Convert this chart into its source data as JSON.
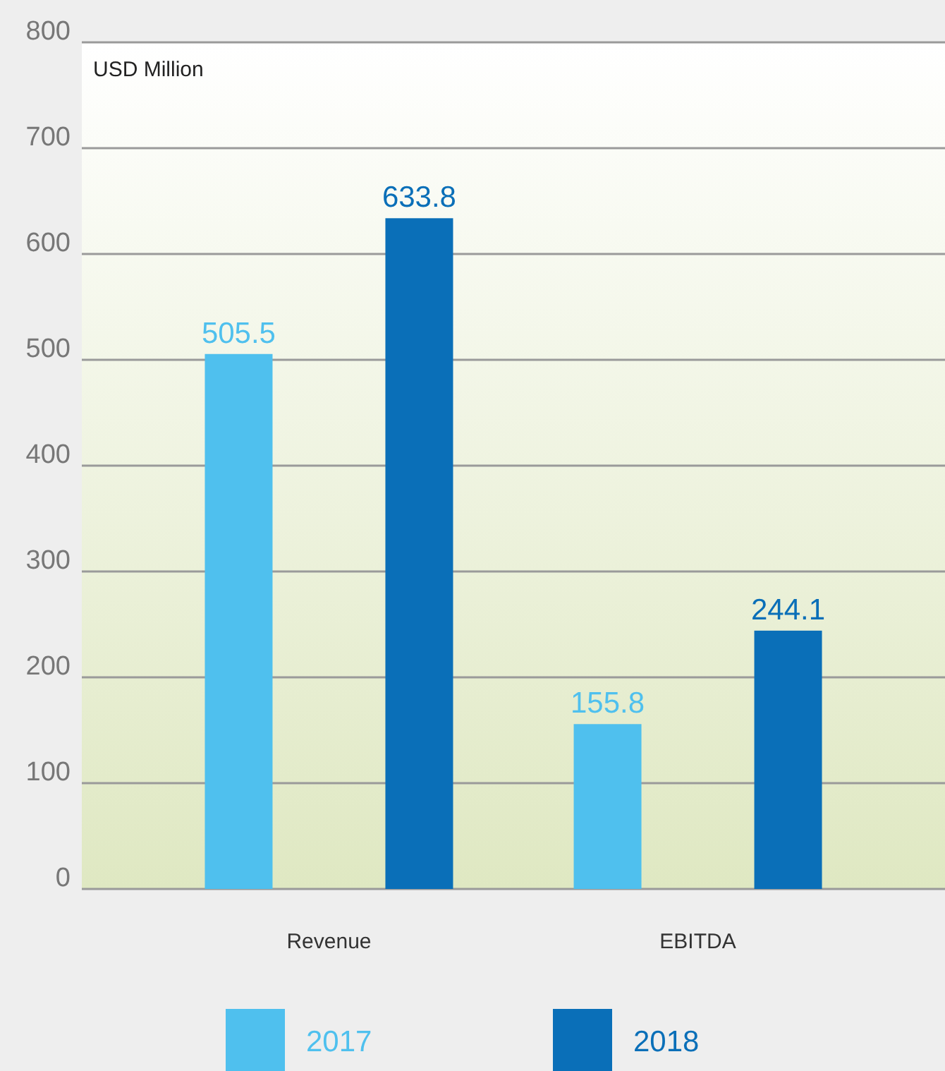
{
  "chart_data": {
    "type": "bar",
    "ylabel": "USD Million",
    "categories": [
      "Revenue",
      "EBITDA"
    ],
    "series": [
      {
        "name": "2017",
        "color": "#4fc0ee",
        "values": [
          505.5,
          155.8
        ]
      },
      {
        "name": "2018",
        "color": "#0a6fb8",
        "values": [
          633.8,
          244.1
        ]
      }
    ],
    "ylim": [
      0,
      800
    ],
    "yticks": [
      0,
      100,
      200,
      300,
      400,
      500,
      600,
      700,
      800
    ],
    "grid": "y",
    "legend": "bottom",
    "data_labels": true
  }
}
